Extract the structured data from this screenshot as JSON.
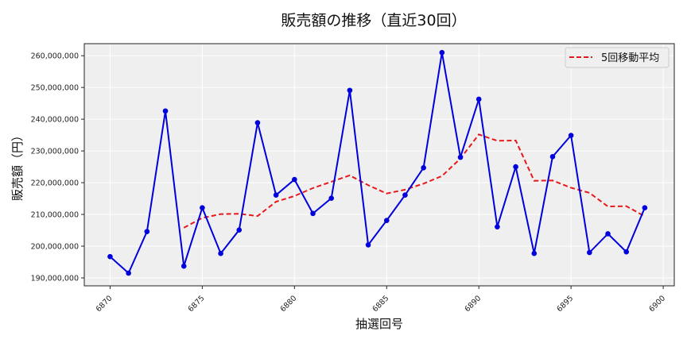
{
  "chart_data": {
    "type": "line",
    "title": "販売額の推移（直近30回）",
    "xlabel": "抽選回号",
    "ylabel": "販売額（円）",
    "x": [
      6870,
      6871,
      6872,
      6873,
      6874,
      6875,
      6876,
      6877,
      6878,
      6879,
      6880,
      6881,
      6882,
      6883,
      6884,
      6885,
      6886,
      6887,
      6888,
      6889,
      6890,
      6891,
      6892,
      6893,
      6894,
      6895,
      6896,
      6897,
      6898,
      6899
    ],
    "series": [
      {
        "name": "販売額",
        "style": "solid-with-markers",
        "color": "#0000dd",
        "values": [
          196700000,
          191500000,
          204600000,
          242600000,
          193700000,
          212100000,
          197700000,
          205100000,
          238900000,
          216100000,
          221000000,
          210300000,
          215100000,
          249100000,
          200400000,
          208100000,
          216100000,
          224700000,
          261000000,
          228000000,
          246300000,
          206100000,
          225000000,
          197700000,
          228200000,
          234900000,
          198000000,
          203900000,
          198200000,
          212100000
        ]
      },
      {
        "name": "5回移動平均",
        "style": "dashed",
        "color": "#e8191b",
        "values": [
          null,
          null,
          null,
          null,
          205800000,
          208900000,
          210100000,
          210200000,
          209500000,
          214000000,
          215800000,
          218300000,
          220300000,
          222300000,
          219200000,
          216600000,
          217800000,
          219700000,
          222100000,
          227600000,
          235200000,
          233200000,
          233300000,
          220600000,
          220700000,
          218400000,
          216800000,
          212500000,
          212600000,
          209400000
        ]
      }
    ],
    "xlim": [
      6868.6,
      6900.6
    ],
    "ylim": [
      187500000,
      263800000
    ],
    "xticks": [
      6870,
      6875,
      6880,
      6885,
      6890,
      6895,
      6900
    ],
    "yticks": [
      190000000,
      200000000,
      210000000,
      220000000,
      230000000,
      240000000,
      250000000,
      260000000
    ],
    "ytick_labels": [
      "190,000,000",
      "200,000,000",
      "210,000,000",
      "220,000,000",
      "230,000,000",
      "240,000,000",
      "250,000,000",
      "260,000,000"
    ],
    "xtick_labels": [
      "6870",
      "6875",
      "6880",
      "6885",
      "6890",
      "6895",
      "6900"
    ],
    "grid": true,
    "legend": {
      "position": "upper right",
      "entries": [
        "5回移動平均"
      ]
    },
    "background": "#efefef"
  }
}
